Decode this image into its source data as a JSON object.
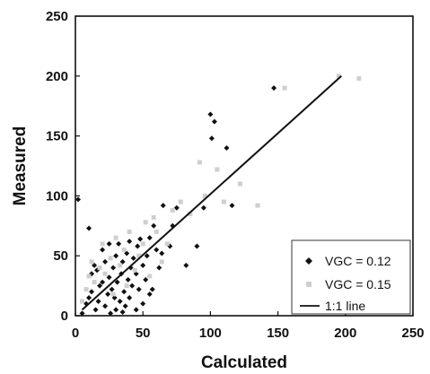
{
  "chart_data": {
    "type": "scatter",
    "title": "",
    "xlabel": "Calculated",
    "ylabel": "Measured",
    "xlim": [
      0,
      250
    ],
    "ylim": [
      0,
      250
    ],
    "xticks": [
      "0",
      "50",
      "100",
      "150",
      "200",
      "250"
    ],
    "yticks": [
      "0",
      "50",
      "100",
      "150",
      "200",
      "250"
    ],
    "grid": false,
    "legend_position": "bottom-right",
    "series": [
      {
        "name": "VGC = 0.12",
        "marker": "diamond",
        "color": "#111111",
        "points": [
          [
            2,
            97
          ],
          [
            10,
            73
          ],
          [
            5,
            2
          ],
          [
            8,
            10
          ],
          [
            10,
            15
          ],
          [
            12,
            20
          ],
          [
            12,
            35
          ],
          [
            14,
            42
          ],
          [
            15,
            5
          ],
          [
            16,
            38
          ],
          [
            17,
            12
          ],
          [
            18,
            25
          ],
          [
            20,
            28
          ],
          [
            20,
            55
          ],
          [
            22,
            8
          ],
          [
            22,
            45
          ],
          [
            24,
            18
          ],
          [
            25,
            32
          ],
          [
            25,
            60
          ],
          [
            26,
            2
          ],
          [
            27,
            22
          ],
          [
            28,
            40
          ],
          [
            29,
            15
          ],
          [
            30,
            50
          ],
          [
            30,
            5
          ],
          [
            31,
            28
          ],
          [
            32,
            60
          ],
          [
            33,
            12
          ],
          [
            34,
            35
          ],
          [
            35,
            3
          ],
          [
            35,
            45
          ],
          [
            36,
            20
          ],
          [
            37,
            8
          ],
          [
            38,
            52
          ],
          [
            39,
            30
          ],
          [
            40,
            62
          ],
          [
            40,
            15
          ],
          [
            41,
            40
          ],
          [
            42,
            25
          ],
          [
            43,
            48
          ],
          [
            45,
            5
          ],
          [
            45,
            35
          ],
          [
            46,
            58
          ],
          [
            47,
            22
          ],
          [
            48,
            64
          ],
          [
            50,
            42
          ],
          [
            50,
            10
          ],
          [
            52,
            30
          ],
          [
            53,
            50
          ],
          [
            55,
            18
          ],
          [
            55,
            65
          ],
          [
            57,
            22
          ],
          [
            58,
            75
          ],
          [
            60,
            55
          ],
          [
            62,
            40
          ],
          [
            64,
            52
          ],
          [
            65,
            92
          ],
          [
            70,
            58
          ],
          [
            72,
            75
          ],
          [
            75,
            90
          ],
          [
            82,
            42
          ],
          [
            90,
            58
          ],
          [
            95,
            90
          ],
          [
            100,
            168
          ],
          [
            101,
            148
          ],
          [
            103,
            162
          ],
          [
            112,
            140
          ],
          [
            116,
            92
          ],
          [
            147,
            190
          ]
        ]
      },
      {
        "name": "VGC = 0.15",
        "marker": "square",
        "color": "#cfcfcf",
        "points": [
          [
            5,
            12
          ],
          [
            8,
            22
          ],
          [
            10,
            33
          ],
          [
            12,
            45
          ],
          [
            14,
            28
          ],
          [
            18,
            40
          ],
          [
            20,
            60
          ],
          [
            22,
            35
          ],
          [
            26,
            48
          ],
          [
            28,
            18
          ],
          [
            30,
            65
          ],
          [
            33,
            42
          ],
          [
            36,
            55
          ],
          [
            38,
            25
          ],
          [
            40,
            70
          ],
          [
            44,
            38
          ],
          [
            47,
            50
          ],
          [
            50,
            60
          ],
          [
            52,
            78
          ],
          [
            55,
            33
          ],
          [
            58,
            82
          ],
          [
            60,
            70
          ],
          [
            64,
            45
          ],
          [
            68,
            60
          ],
          [
            72,
            88
          ],
          [
            78,
            95
          ],
          [
            85,
            85
          ],
          [
            92,
            128
          ],
          [
            96,
            100
          ],
          [
            105,
            122
          ],
          [
            110,
            95
          ],
          [
            122,
            110
          ],
          [
            135,
            92
          ],
          [
            155,
            190
          ],
          [
            195,
            200
          ],
          [
            210,
            198
          ]
        ]
      },
      {
        "name": "1:1 line",
        "marker": "line",
        "color": "#111111",
        "points": [
          [
            5,
            5
          ],
          [
            197,
            200
          ]
        ]
      }
    ]
  }
}
